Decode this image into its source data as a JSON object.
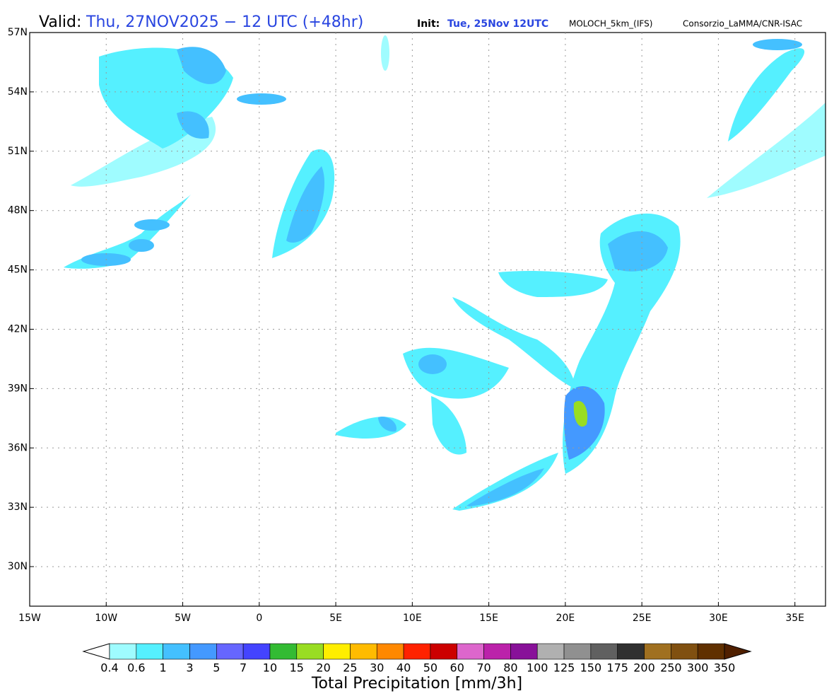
{
  "header": {
    "valid_label": "Valid:",
    "valid_time": "Thu, 27NOV2025 − 12 UTC (+48hr)",
    "init_label": "Init:",
    "init_time": "Tue, 25Nov 12UTC",
    "model": "MOLOCH_5km_(IFS)",
    "credit": "Consorzio_LaMMA/CNR-ISAC"
  },
  "chart_data": {
    "type": "map",
    "xlim": [
      -15,
      37
    ],
    "ylim": [
      28,
      57
    ],
    "grid": true,
    "xticks": [
      {
        "value": -15,
        "label": "15W"
      },
      {
        "value": -10,
        "label": "10W"
      },
      {
        "value": -5,
        "label": "5W"
      },
      0,
      {
        "value": 5,
        "label": "5E"
      },
      {
        "value": 10,
        "label": "10E"
      },
      {
        "value": 15,
        "label": "15E"
      },
      {
        "value": 20,
        "label": "20E"
      },
      {
        "value": 25,
        "label": "25E"
      },
      {
        "value": 30,
        "label": "30E"
      },
      {
        "value": 35,
        "label": "35E"
      }
    ],
    "yticks": [
      {
        "value": 30,
        "label": "30N"
      },
      {
        "value": 33,
        "label": "33N"
      },
      {
        "value": 36,
        "label": "36N"
      },
      {
        "value": 39,
        "label": "39N"
      },
      {
        "value": 42,
        "label": "42N"
      },
      {
        "value": 45,
        "label": "45N"
      },
      {
        "value": 48,
        "label": "48N"
      },
      {
        "value": 51,
        "label": "51N"
      },
      {
        "value": 54,
        "label": "54N"
      },
      {
        "value": 57,
        "label": "57N"
      }
    ]
  },
  "colorbar": {
    "title": "Total Precipitation [mm/3h]",
    "levels": [
      0.4,
      0.6,
      1,
      3,
      5,
      7,
      10,
      15,
      20,
      25,
      30,
      40,
      50,
      60,
      70,
      80,
      100,
      125,
      150,
      175,
      200,
      250,
      300,
      350
    ],
    "colors": [
      "#9ffcff",
      "#55f0ff",
      "#44c0ff",
      "#4499ff",
      "#6666ff",
      "#4444ff",
      "#33bb33",
      "#99dd22",
      "#ffee00",
      "#ffbb00",
      "#ff8800",
      "#ff2200",
      "#cc0000",
      "#dd66cc",
      "#bb22aa",
      "#881199",
      "#b0b0b0",
      "#909090",
      "#606060",
      "#303030",
      "#a07020",
      "#805010",
      "#603000"
    ],
    "under_color": "#ffffff",
    "over_color": "#502000"
  }
}
